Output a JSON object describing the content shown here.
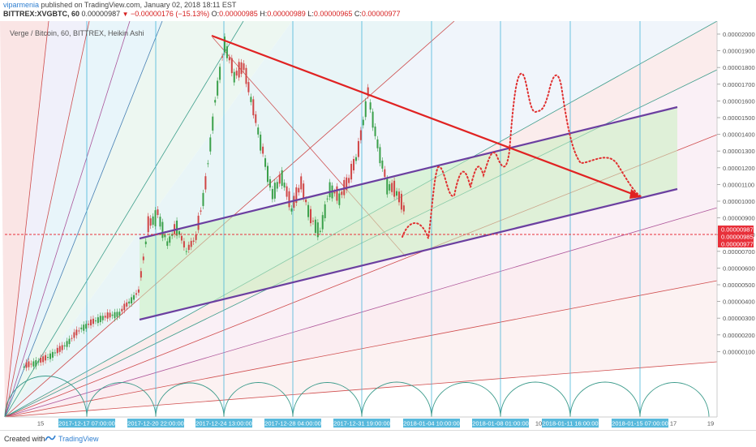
{
  "header": {
    "author": "viparmenia",
    "published": "published on TradingView.com, January 02, 2018 18:11 EST",
    "symbol": "BITTREX:XVGBTC, 60",
    "change": "−0.00000176 (−15.13%)",
    "last": "0.00000987",
    "o_label": "O:",
    "o_value": "0.00000985",
    "h_label": "H:",
    "h_value": "0.00000989",
    "l_label": "L:",
    "l_value": "0.00000965",
    "c_label": "C:",
    "c_value": "0.00000977"
  },
  "footer": {
    "created_with": "Created with",
    "brand": "TradingView"
  },
  "colors": {
    "price_line": "#e8303a",
    "last_tag": "#e8303a",
    "channel": "#6b3fa0",
    "arrow": "#e02222",
    "fan_red": "#c83030",
    "fan_blue": "#2b6ca8",
    "fan_teal": "#1f8f7a",
    "vline": "#3fb2d8",
    "date_tag": "#58b9dc",
    "channel_fill": "#c8f0c0"
  },
  "chart_data": {
    "type": "candlestick",
    "title": "Verge / Bitcoin, 60, BITTREX, Heikin Ashi",
    "y_ticks": [
      "0.00002000",
      "0.00001900",
      "0.00001800",
      "0.00001700",
      "0.00001600",
      "0.00001500",
      "0.00001400",
      "0.00001300",
      "0.00001200",
      "0.00001100",
      "0.00001000",
      "0.00000900",
      "0.00000800",
      "0.00000700",
      "0.00000600",
      "0.00000500",
      "0.00000400",
      "0.00000300",
      "0.00000200",
      "0.00000100"
    ],
    "ylim": [
      6e-07,
      2.06e-05
    ],
    "x_ticks": [
      {
        "label": "15",
        "tag": false
      },
      {
        "label": "2017-12-17 07:00:00",
        "tag": true
      },
      {
        "label": "2017-12-20 22:00:00",
        "tag": true
      },
      {
        "label": "2017-12-24 13:00:00",
        "tag": true
      },
      {
        "label": "2017-12-28 04:00:00",
        "tag": true
      },
      {
        "label": "2017-12-31 19:00:00",
        "tag": true
      },
      {
        "label": "2018-01-04 10:00:00",
        "tag": true
      },
      {
        "label": "2018-01-08 01:00:00",
        "tag": true
      },
      {
        "label": "10",
        "tag": false
      },
      {
        "label": "2018-01-11 16:00:00",
        "tag": true
      },
      {
        "label": "2018-01-15 07:00:00",
        "tag": true
      },
      {
        "label": "17",
        "tag": false
      },
      {
        "label": "19",
        "tag": false
      }
    ],
    "last_price_tags": [
      "0.00000987",
      "0.00000985",
      "0.00000977"
    ],
    "price_path": [
      [
        "2017-12-14 00:00",
        1e-07
      ],
      [
        "2017-12-15 00:00",
        5e-07
      ],
      [
        "2017-12-16 00:00",
        1.2e-06
      ],
      [
        "2017-12-17 00:00",
        2.4e-06
      ],
      [
        "2017-12-18 00:00",
        3e-06
      ],
      [
        "2017-12-19 00:00",
        3.3e-06
      ],
      [
        "2017-12-20 00:00",
        4.6e-06
      ],
      [
        "2017-12-20 12:00",
        8.5e-06
      ],
      [
        "2017-12-21 00:00",
        9.3e-06
      ],
      [
        "2017-12-21 12:00",
        7.5e-06
      ],
      [
        "2017-12-22 00:00",
        8.5e-06
      ],
      [
        "2017-12-22 12:00",
        7e-06
      ],
      [
        "2017-12-23 00:00",
        7.8e-06
      ],
      [
        "2017-12-23 12:00",
        1.1e-05
      ],
      [
        "2017-12-24 00:00",
        1.6e-05
      ],
      [
        "2017-12-24 12:00",
        1.95e-05
      ],
      [
        "2017-12-25 00:00",
        1.75e-05
      ],
      [
        "2017-12-25 12:00",
        1.8e-05
      ],
      [
        "2017-12-26 00:00",
        1.55e-05
      ],
      [
        "2017-12-26 12:00",
        1.3e-05
      ],
      [
        "2017-12-27 00:00",
        1.05e-05
      ],
      [
        "2017-12-27 12:00",
        1.15e-05
      ],
      [
        "2017-12-28 00:00",
        9.5e-06
      ],
      [
        "2017-12-28 12:00",
        1.1e-05
      ],
      [
        "2017-12-29 00:00",
        9e-06
      ],
      [
        "2017-12-29 12:00",
        8.2e-06
      ],
      [
        "2017-12-30 00:00",
        1.08e-05
      ],
      [
        "2017-12-30 12:00",
        1.02e-05
      ],
      [
        "2017-12-31 00:00",
        1.12e-05
      ],
      [
        "2017-12-31 12:00",
        1.3e-05
      ],
      [
        "2018-01-01 00:00",
        1.65e-05
      ],
      [
        "2018-01-01 12:00",
        1.35e-05
      ],
      [
        "2018-01-02 00:00",
        1.1e-05
      ],
      [
        "2018-01-02 12:00",
        1.05e-05
      ],
      [
        "2018-01-03 00:00",
        9.2e-06
      ]
    ],
    "forecast_path": [
      [
        "2018-01-03 00:00",
        9.2e-06
      ],
      [
        "2018-01-03 12:00",
        1.02e-05
      ],
      [
        "2018-01-04 00:00",
        9.3e-06
      ],
      [
        "2018-01-04 12:00",
        1.3e-05
      ],
      [
        "2018-01-05 00:00",
        1.18e-05
      ],
      [
        "2018-01-05 12:00",
        1.3e-05
      ],
      [
        "2018-01-06 00:00",
        1.18e-05
      ],
      [
        "2018-01-06 12:00",
        1.33e-05
      ],
      [
        "2018-01-07 00:00",
        1.2e-05
      ],
      [
        "2018-01-07 12:00",
        1.35e-05
      ],
      [
        "2018-01-08 00:00",
        1.28e-05
      ],
      [
        "2018-01-08 12:00",
        1.78e-05
      ],
      [
        "2018-01-09 00:00",
        1.55e-05
      ],
      [
        "2018-01-09 12:00",
        1.8e-05
      ],
      [
        "2018-01-10 00:00",
        1.45e-05
      ],
      [
        "2018-01-11 00:00",
        1.32e-05
      ],
      [
        "2018-01-12 00:00",
        1.32e-05
      ],
      [
        "2018-01-13 00:00",
        1.2e-05
      ]
    ],
    "channel_upper": [
      [
        "2017-12-20 12:00",
        9.6e-06
      ],
      [
        "2018-01-15 12:00",
        1.63e-05
      ]
    ],
    "channel_lower": [
      [
        "2017-12-20 12:00",
        5.5e-06
      ],
      [
        "2018-01-15 12:00",
        1.22e-05
      ]
    ],
    "trend_arrow": [
      [
        "2017-12-24 12:00",
        1.99e-05
      ],
      [
        "2018-01-14 12:00",
        1.18e-05
      ]
    ]
  }
}
